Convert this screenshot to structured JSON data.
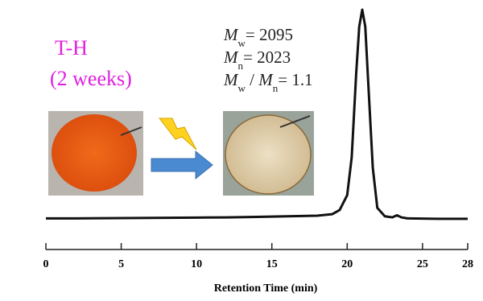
{
  "chart_data": {
    "type": "line",
    "x_label": "Retention Time (min)",
    "xlim": [
      0,
      28
    ],
    "xticks": [
      0,
      5,
      10,
      15,
      20,
      25,
      28
    ],
    "ylim": [
      0,
      100
    ],
    "x": [
      0,
      2,
      4,
      6,
      8,
      10,
      12,
      14,
      16,
      18,
      19,
      19.5,
      20,
      20.3,
      20.6,
      20.8,
      21,
      21.2,
      21.4,
      21.7,
      22,
      22.5,
      23,
      23.3,
      23.6,
      24,
      26,
      28
    ],
    "series": [
      {
        "name": null,
        "color": "#111111",
        "values": [
          1,
          1,
          1.1,
          1.2,
          1.3,
          1.4,
          1.5,
          1.7,
          2,
          2.3,
          3,
          5,
          12,
          30,
          70,
          92,
          100,
          92,
          65,
          25,
          6,
          2,
          1.5,
          2.5,
          1.5,
          1,
          0.8,
          0.8
        ]
      }
    ],
    "annotations": {
      "sample": "T-H",
      "duration": "(2 weeks)",
      "mw": [
        {
          "t": "M",
          "i": true
        },
        {
          "t": "w",
          "sub": true
        },
        {
          "t": "= 2095"
        }
      ],
      "mn": [
        {
          "t": "M",
          "i": true
        },
        {
          "t": "n",
          "sub": true
        },
        {
          "t": "= 2023"
        }
      ],
      "pdi": [
        {
          "t": "M",
          "i": true
        },
        {
          "t": "w",
          "sub": true
        },
        {
          "t": " / "
        },
        {
          "t": "M",
          "i": true
        },
        {
          "t": "n",
          "sub": true
        },
        {
          "t": "= 1.1"
        }
      ]
    }
  }
}
